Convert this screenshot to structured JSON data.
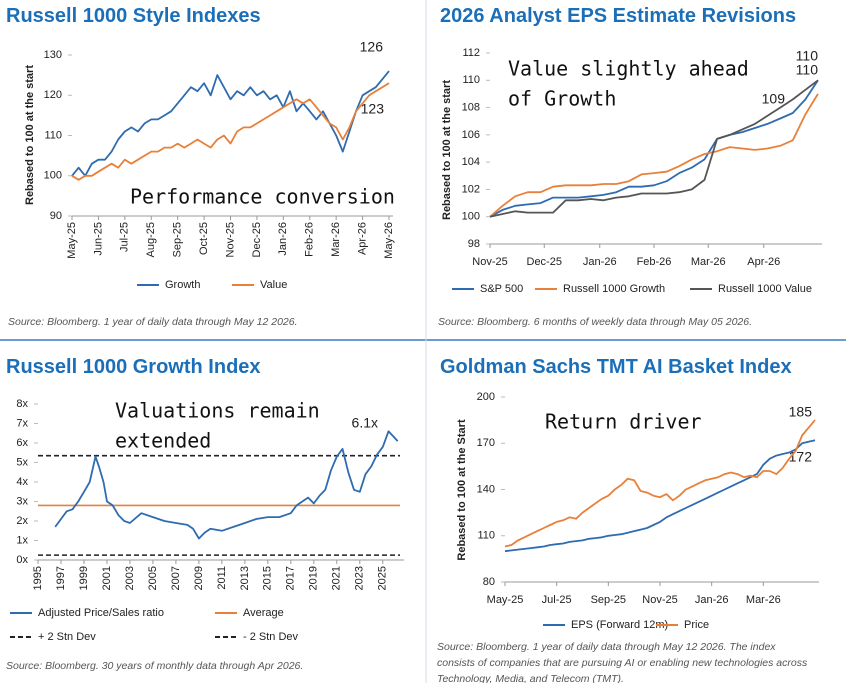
{
  "chart_data": [
    {
      "type": "line",
      "title": "Russell 1000 Style Indexes",
      "y_label": "Rebased to 100 at the start",
      "annotations": [
        "Performance conversion"
      ],
      "source": [
        "Source: Bloomberg. 1 year of daily data through May 12 2026."
      ],
      "xlim": [
        0,
        48
      ],
      "xticks": [
        {
          "value": 0,
          "label": "May-25"
        },
        {
          "value": 4,
          "label": "Jun-25"
        },
        {
          "value": 8,
          "label": "Jul-25"
        },
        {
          "value": 12,
          "label": "Aug-25"
        },
        {
          "value": 16,
          "label": "Sep-25"
        },
        {
          "value": 20,
          "label": "Oct-25"
        },
        {
          "value": 24,
          "label": "Nov-25"
        },
        {
          "value": 28,
          "label": "Dec-25"
        },
        {
          "value": 32,
          "label": "Jan-26"
        },
        {
          "value": 36,
          "label": "Feb-26"
        },
        {
          "value": 40,
          "label": "Mar-26"
        },
        {
          "value": 44,
          "label": "Apr-26"
        },
        {
          "value": 48,
          "label": "May-26"
        }
      ],
      "ylim": [
        90,
        130
      ],
      "yticks": [
        90,
        100,
        110,
        120,
        130
      ],
      "series": [
        {
          "name": "Growth",
          "color": "#2e6bb0",
          "values": [
            100,
            102,
            100,
            103,
            104,
            104,
            106,
            109,
            111,
            112,
            111,
            113,
            114,
            114,
            115,
            116,
            118,
            120,
            122,
            121,
            123,
            120,
            125,
            122,
            119,
            121,
            120,
            122,
            120,
            121,
            119,
            120,
            117,
            121,
            116,
            118,
            116,
            114,
            116,
            113,
            110,
            106,
            111,
            116,
            120,
            121,
            122,
            124,
            126
          ]
        },
        {
          "name": "Value",
          "color": "#e8803a",
          "values": [
            100,
            99,
            100,
            100,
            101,
            102,
            103,
            102,
            104,
            103,
            104,
            105,
            106,
            106,
            107,
            107,
            108,
            107,
            108,
            109,
            108,
            107,
            109,
            110,
            108,
            111,
            112,
            112,
            113,
            114,
            115,
            116,
            117,
            118,
            119,
            118,
            119,
            117,
            115,
            113,
            112,
            109,
            112,
            116,
            118,
            120,
            121,
            122,
            123
          ]
        }
      ]
    },
    {
      "type": "line",
      "title": "2026 Analyst EPS Estimate Revisions",
      "y_label": "Rebased to 100 at the start",
      "annotations": [
        "Value slightly ahead",
        "of Growth"
      ],
      "source": [
        "Source: Bloomberg. 6 months of weekly data through May 05 2026."
      ],
      "xlim": [
        0,
        26
      ],
      "xticks": [
        {
          "value": 0,
          "label": "Nov-25"
        },
        {
          "value": 4.3,
          "label": "Dec-25"
        },
        {
          "value": 8.7,
          "label": "Jan-26"
        },
        {
          "value": 13,
          "label": "Feb-26"
        },
        {
          "value": 17.3,
          "label": "Mar-26"
        },
        {
          "value": 21.7,
          "label": "Apr-26"
        }
      ],
      "ylim": [
        98,
        112
      ],
      "yticks": [
        98,
        100,
        102,
        104,
        106,
        108,
        110,
        112
      ],
      "series": [
        {
          "name": "S&P 500",
          "color": "#2e6bb0",
          "values": [
            100,
            100.5,
            100.8,
            100.9,
            101,
            101.4,
            101.4,
            101.4,
            101.5,
            101.6,
            101.8,
            102.2,
            102.2,
            102.3,
            102.6,
            103.2,
            103.6,
            104.2,
            105.7,
            106,
            106.2,
            106.5,
            106.8,
            107.2,
            107.6,
            108.6,
            110
          ]
        },
        {
          "name": "Russell 1000 Growth",
          "color": "#e8803a",
          "values": [
            100,
            100.8,
            101.5,
            101.8,
            101.8,
            102.2,
            102.3,
            102.3,
            102.3,
            102.4,
            102.4,
            102.6,
            103.1,
            103.2,
            103.3,
            103.7,
            104.2,
            104.6,
            104.8,
            105.1,
            105,
            104.9,
            105,
            105.2,
            105.6,
            107.5,
            109
          ]
        },
        {
          "name": "Russell 1000 Value",
          "color": "#555555",
          "values": [
            100,
            100.2,
            100.4,
            100.3,
            100.3,
            100.3,
            101.2,
            101.2,
            101.3,
            101.2,
            101.4,
            101.5,
            101.7,
            101.7,
            101.7,
            101.8,
            102,
            102.7,
            105.7,
            106,
            106.4,
            106.8,
            107.4,
            108,
            108.6,
            109.3,
            110
          ]
        }
      ]
    },
    {
      "type": "line",
      "title": "Russell 1000 Growth Index",
      "annotations": [
        "Valuations remain",
        "extended"
      ],
      "source": [
        "Source: Bloomberg. 30 years of monthly data through Apr 2026."
      ],
      "xlim": [
        1995,
        2026.5
      ],
      "xticks": [
        1995,
        1997,
        1999,
        2001,
        2003,
        2005,
        2007,
        2009,
        2011,
        2013,
        2015,
        2017,
        2019,
        2021,
        2023,
        2025
      ],
      "ylim": [
        0,
        8
      ],
      "yticks": [
        {
          "value": 0,
          "label": "0x"
        },
        {
          "value": 1,
          "label": "1x"
        },
        {
          "value": 2,
          "label": "2x"
        },
        {
          "value": 3,
          "label": "3x"
        },
        {
          "value": 4,
          "label": "4x"
        },
        {
          "value": 5,
          "label": "5x"
        },
        {
          "value": 6,
          "label": "6x"
        },
        {
          "value": 7,
          "label": "7x"
        },
        {
          "value": 8,
          "label": "8x"
        }
      ],
      "series": [
        {
          "name": "Adjusted Price/Sales ratio",
          "color": "#2e6bb0",
          "x": [
            1996.5,
            1997,
            1997.5,
            1998,
            1998.5,
            1999,
            1999.5,
            2000,
            2000.3,
            2000.7,
            2001,
            2001.5,
            2002,
            2002.5,
            2003,
            2004,
            2005,
            2006,
            2007,
            2008,
            2008.5,
            2009,
            2009.5,
            2010,
            2011,
            2012,
            2013,
            2014,
            2015,
            2016,
            2017,
            2017.5,
            2018,
            2018.5,
            2019,
            2019.5,
            2020,
            2020.5,
            2021,
            2021.5,
            2022,
            2022.5,
            2023,
            2023.5,
            2024,
            2024.5,
            2025,
            2025.5,
            2026.3
          ],
          "values": [
            1.7,
            2.1,
            2.5,
            2.6,
            3.0,
            3.5,
            4.0,
            5.3,
            4.8,
            4.0,
            3.0,
            2.8,
            2.3,
            2.0,
            1.9,
            2.4,
            2.2,
            2.0,
            1.9,
            1.8,
            1.6,
            1.1,
            1.4,
            1.6,
            1.5,
            1.7,
            1.9,
            2.1,
            2.2,
            2.2,
            2.4,
            2.8,
            3.0,
            3.2,
            2.9,
            3.3,
            3.6,
            4.6,
            5.3,
            5.7,
            4.5,
            3.6,
            3.5,
            4.4,
            4.8,
            5.4,
            5.8,
            6.6,
            6.1
          ],
          "value_labels": [
            null,
            null,
            null,
            null,
            null,
            null,
            null,
            null,
            null,
            null,
            null,
            null,
            null,
            null,
            null,
            null,
            null,
            null,
            null,
            null,
            null,
            null,
            null,
            null,
            null,
            null,
            null,
            null,
            null,
            null,
            null,
            null,
            null,
            null,
            null,
            null,
            null,
            null,
            null,
            null,
            null,
            null,
            null,
            null,
            null,
            null,
            null,
            null,
            "6.1x"
          ]
        }
      ],
      "hlines": [
        {
          "name": "Average",
          "color": "#e8803a",
          "value": 2.8,
          "style": "solid"
        },
        {
          "name": "+ 2 Stn Dev",
          "color": "#222222",
          "value": 5.35,
          "style": "dashed"
        },
        {
          "name": "- 2 Stn Dev",
          "color": "#222222",
          "value": 0.25,
          "style": "dashed"
        }
      ]
    },
    {
      "type": "line",
      "title": "Goldman Sachs TMT AI Basket Index",
      "y_label": "Rebased to 100 at the Start",
      "annotations": [
        "Return driver"
      ],
      "source": [
        "Source: Bloomberg. 1 year of daily data through May 12 2026. The index",
        "consists of companies that are pursuing AI or enabling new technologies across",
        "Technology, Media, and Telecom (TMT)."
      ],
      "xlim": [
        0,
        48
      ],
      "xticks": [
        {
          "value": 0,
          "label": "May-25"
        },
        {
          "value": 8,
          "label": "Jul-25"
        },
        {
          "value": 16,
          "label": "Sep-25"
        },
        {
          "value": 24,
          "label": "Nov-25"
        },
        {
          "value": 32,
          "label": "Jan-26"
        },
        {
          "value": 40,
          "label": "Mar-26"
        }
      ],
      "ylim": [
        80,
        200
      ],
      "yticks": [
        80,
        110,
        140,
        170,
        200
      ],
      "series": [
        {
          "name": "EPS (Forward 12m)",
          "color": "#2e6bb0",
          "values": [
            100,
            100.5,
            101,
            101.5,
            102,
            102.5,
            103,
            104,
            104.5,
            105,
            106,
            106.5,
            107,
            108,
            108.5,
            109,
            110,
            110.5,
            111,
            112,
            113,
            114,
            115,
            117,
            119,
            122,
            124,
            126,
            128,
            130,
            132,
            134,
            136,
            138,
            140,
            142,
            144,
            146,
            148,
            150,
            156,
            160,
            162,
            163,
            164,
            166,
            170,
            171,
            172
          ]
        },
        {
          "name": "Price",
          "color": "#e8803a",
          "values": [
            103,
            104,
            107,
            109,
            111,
            113,
            115,
            117,
            119,
            120,
            122,
            121,
            125,
            128,
            131,
            134,
            136,
            140,
            143,
            147,
            146,
            139,
            138,
            136,
            135,
            137,
            133,
            136,
            140,
            142,
            144,
            146,
            147,
            148,
            150,
            151,
            150,
            148,
            149,
            148,
            152,
            152,
            150,
            154,
            160,
            165,
            175,
            180,
            185
          ]
        }
      ]
    }
  ]
}
